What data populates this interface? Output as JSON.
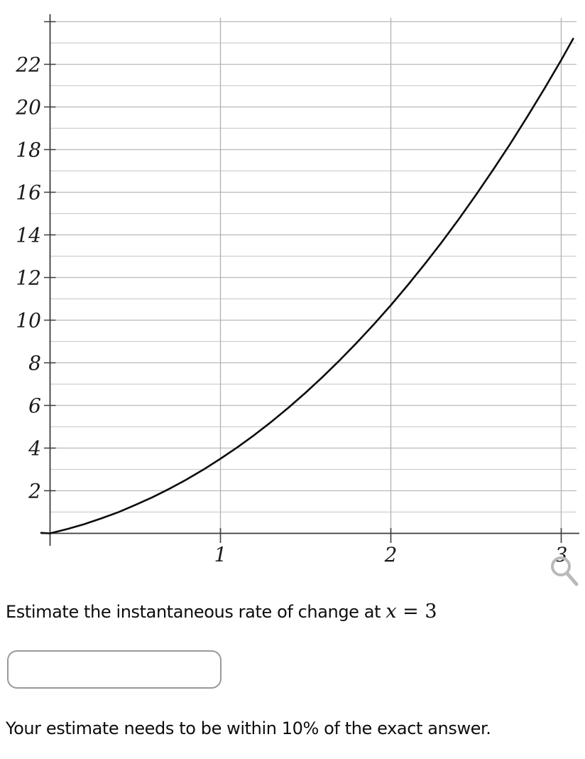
{
  "chart_data": {
    "type": "line",
    "title": "",
    "xlabel": "",
    "ylabel": "",
    "xlim": [
      0,
      3.1
    ],
    "ylim": [
      0,
      24.3
    ],
    "grid": true,
    "legend": "none",
    "x_tick_labels": [
      "1",
      "2",
      "3"
    ],
    "x_tick_values": [
      1,
      2,
      3
    ],
    "y_tick_labels": [
      "2",
      "4",
      "6",
      "8",
      "10",
      "12",
      "14",
      "16",
      "18",
      "20",
      "22"
    ],
    "y_tick_values": [
      2,
      4,
      6,
      8,
      10,
      12,
      14,
      16,
      18,
      20,
      22
    ],
    "minor_y_step": 1,
    "series": [
      {
        "name": "curve",
        "x": [
          0,
          0.1,
          0.2,
          0.3,
          0.4,
          0.5,
          0.6,
          0.7,
          0.8,
          0.9,
          1,
          1.1,
          1.2,
          1.3,
          1.4,
          1.5,
          1.6,
          1.7,
          1.8,
          1.9,
          2,
          2.1,
          2.2,
          2.3,
          2.4,
          2.5,
          2.6,
          2.7,
          2.8,
          2.9,
          3,
          3.07
        ],
        "y": [
          0,
          0.2,
          0.43,
          0.7,
          0.99,
          1.33,
          1.69,
          2.09,
          2.52,
          2.99,
          3.5,
          4.04,
          4.62,
          5.24,
          5.9,
          6.6,
          7.34,
          8.12,
          8.94,
          9.8,
          10.7,
          11.65,
          12.64,
          13.67,
          14.75,
          15.88,
          17.05,
          18.26,
          19.53,
          20.84,
          22.2,
          23.2
        ]
      }
    ],
    "key_points": {
      "f_at_1": 3.5,
      "f_at_2": 10.7,
      "f_at_3": 22.2
    }
  },
  "question": {
    "prompt_prefix": "Estimate the instantaneous rate of change at ",
    "math_var": "x",
    "math_rest": " = 3",
    "answer_value": "",
    "note": "Your estimate needs to be within 10% of the exact answer."
  },
  "icons": {
    "zoom": "magnifier-icon"
  },
  "colors": {
    "axis": "#3d3d3d",
    "grid_major": "#b9b9b9",
    "grid_minor": "#cfcfcf",
    "grid_vertical": "#b5b5b5",
    "curve": "#0d0d0d",
    "label": "#1a1a1a",
    "magnifier": "#b9b9b9",
    "input_border": "#999999"
  }
}
